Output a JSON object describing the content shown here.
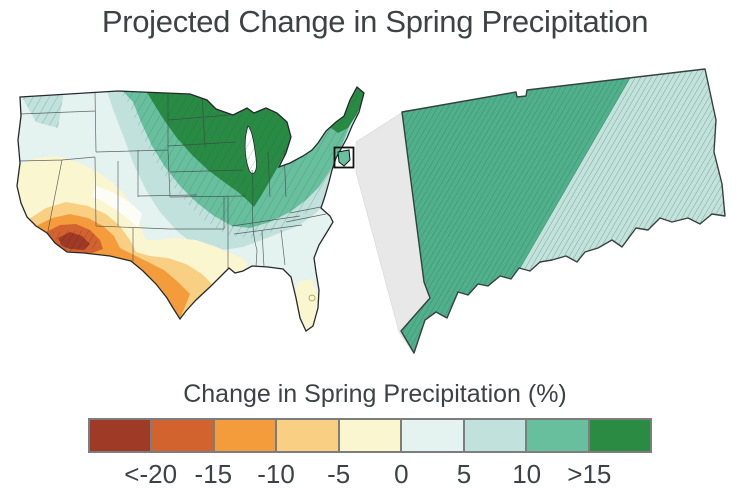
{
  "title": "Projected Change in Spring Precipitation",
  "legend": {
    "title": "Change in Spring Precipitation (%)",
    "tick_labels": [
      "<-20",
      "-15",
      "-10",
      "-5",
      "0",
      "5",
      "10",
      ">15"
    ],
    "bins": [
      {
        "range": "< -20",
        "color": "#9E3A25"
      },
      {
        "range": "-20 to -15",
        "color": "#D2622E"
      },
      {
        "range": "-15 to -10",
        "color": "#F49C3C"
      },
      {
        "range": "-10 to -5",
        "color": "#F9D083"
      },
      {
        "range": "-5 to 0",
        "color": "#FAF6CF"
      },
      {
        "range": "0 to 5",
        "color": "#E4F2F0"
      },
      {
        "range": "5 to 10",
        "color": "#C1E1DC"
      },
      {
        "range": "10 to 15",
        "color": "#68BF9E"
      },
      {
        "range": "> 15",
        "color": "#2B8B43"
      }
    ]
  },
  "palette": {
    "c1": "#9E3A25",
    "c2": "#D2622E",
    "c3": "#F49C3C",
    "c4": "#F9D083",
    "c5": "#FAF6CF",
    "c6": "#E4F2F0",
    "c7": "#C1E1DC",
    "c8": "#68BF9E",
    "c9": "#288A43",
    "white_band": "#FCFDF6",
    "inset_green": "#50B08C",
    "inset_teal": "#C4E2DC",
    "callout_gray": "#E8E8E8",
    "callout_edge": "#D6D6D6",
    "lake_white": "#FFFFFF",
    "outline": "#26292B",
    "inset_outline": "#37413F",
    "state_line": "#3F4446",
    "hatch_cool": "#23604C",
    "hatch_inset": "#2A6B55",
    "hatch_warm": "#4A190E",
    "box_black": "#111111",
    "text_gray": "#3F4245"
  }
}
